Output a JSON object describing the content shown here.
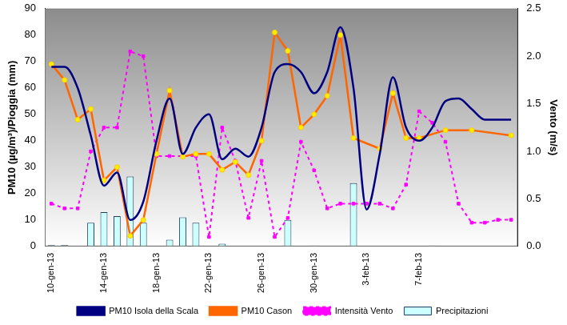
{
  "chart_data": {
    "type": "bar",
    "y_label": "PM10 (µg/m³)/Pioggia (mm)",
    "y2_label": "Vento (m/s)",
    "categories": [
      "10-gen-13",
      null,
      null,
      null,
      "14-gen-13",
      null,
      null,
      null,
      "18-gen-13",
      null,
      null,
      null,
      "22-gen-13",
      null,
      null,
      null,
      "26-gen-13",
      null,
      null,
      null,
      "30-gen-13",
      null,
      null,
      null,
      "3-feb-13",
      null,
      null,
      null,
      "7-feb-13",
      null,
      null,
      null,
      null,
      null,
      null,
      null
    ],
    "ylim": [
      0,
      90
    ],
    "yticks": [
      0,
      10,
      20,
      30,
      40,
      50,
      60,
      70,
      80,
      90
    ],
    "y2lim": [
      0,
      2.5
    ],
    "y2ticks": [
      {
        "value": 0,
        "label": "0.0"
      },
      {
        "value": 0.5,
        "label": "0.5"
      },
      {
        "value": 1,
        "label": "1.0"
      },
      {
        "value": 1.5,
        "label": "1.5"
      },
      {
        "value": 2,
        "label": "2.0"
      },
      {
        "value": 2.5,
        "label": "2.5"
      }
    ],
    "grid": false,
    "legend": "bottom",
    "series": [
      {
        "name": "Precipitazioni",
        "type": "bar",
        "color": "#ccffff",
        "values": [
          0.5,
          0.5,
          null,
          9,
          13,
          11.5,
          26.5,
          9,
          null,
          2.5,
          11,
          9,
          null,
          1,
          null,
          null,
          null,
          null,
          10,
          null,
          0.3,
          null,
          null,
          24,
          null,
          null,
          null,
          null,
          null,
          0.3,
          null,
          null,
          null,
          null,
          null,
          null
        ]
      },
      {
        "name": "PM10 Isola della Scala",
        "type": "line",
        "color": "#000080",
        "marker": "none",
        "line_style": "smooth",
        "values": [
          68,
          68,
          60,
          42,
          23,
          28,
          10,
          17,
          40,
          56,
          35,
          45,
          50,
          33,
          37,
          34,
          45,
          66,
          69,
          66,
          58,
          66,
          83,
          60,
          14,
          35,
          64,
          45,
          40,
          45,
          55,
          56,
          52,
          48,
          48,
          48
        ]
      },
      {
        "name": "PM10 Cason",
        "type": "line",
        "color": "#ff6600",
        "marker": "circle",
        "line_style": "solid",
        "values": [
          69,
          63,
          48,
          52,
          25,
          30,
          4,
          10,
          35,
          59,
          34,
          35,
          35,
          29,
          32,
          27,
          40,
          81,
          74,
          45,
          50,
          57,
          80,
          41,
          null,
          37,
          58,
          41,
          41,
          null,
          44,
          null,
          44,
          null,
          null,
          42
        ]
      },
      {
        "name": "Intensità Vento",
        "type": "line",
        "color": "#ff00ff",
        "marker": "square",
        "line_style": "dashed",
        "axis": "y2",
        "values": [
          0.45,
          0.4,
          0.4,
          1.0,
          1.25,
          1.25,
          2.05,
          2.0,
          0.95,
          0.95,
          0.95,
          0.95,
          0.1,
          1.25,
          0.9,
          0.3,
          0.9,
          0.1,
          0.3,
          1.1,
          0.8,
          0.4,
          0.45,
          0.45,
          0.45,
          0.45,
          0.4,
          0.65,
          1.42,
          1.3,
          1.1,
          0.45,
          0.25,
          0.25,
          0.28,
          0.28
        ]
      }
    ]
  }
}
